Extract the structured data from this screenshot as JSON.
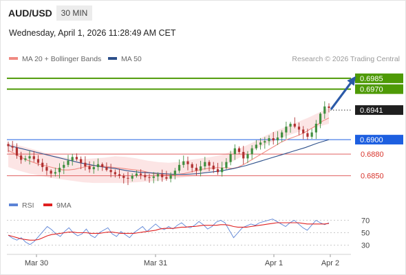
{
  "header": {
    "symbol": "AUD/USD",
    "timeframe": "30 MIN",
    "datetime": "Wednesday, April 1, 2026 11:28:49 AM CET"
  },
  "legend": {
    "items": [
      {
        "label": "MA 20 + Bollinger Bands",
        "color": "#f08a82"
      },
      {
        "label": "MA 50",
        "color": "#2c4f8a"
      }
    ],
    "credit": "Research © 2026 Trading Central"
  },
  "rsi_legend": {
    "items": [
      {
        "label": "RSI",
        "color": "#5b83d6"
      },
      {
        "label": "9MA",
        "color": "#e02020"
      }
    ]
  },
  "chart_data": [
    {
      "type": "candlestick",
      "title": "AUD/USD",
      "y_range": [
        0.6822,
        0.7003
      ],
      "x_ticks": [
        "Mar 30",
        "Mar 31",
        "Apr 1",
        "Apr 2"
      ],
      "current_price": {
        "label": "0.6941",
        "value": 0.6941
      },
      "levels": [
        {
          "label": "0.6985",
          "value": 0.6985,
          "kind": "target",
          "color": "#4e9a06"
        },
        {
          "label": "0.6970",
          "value": 0.697,
          "kind": "target",
          "color": "#4e9a06"
        },
        {
          "label": "0.6900",
          "value": 0.69,
          "kind": "pivot",
          "color": "#1d5fe0"
        },
        {
          "label": "0.6880",
          "value": 0.688,
          "kind": "support",
          "color": "#e06060"
        },
        {
          "label": "0.6850",
          "value": 0.685,
          "kind": "support",
          "color": "#e06060"
        }
      ],
      "close_path": [
        0.6891,
        0.6889,
        0.6878,
        0.6872,
        0.6874,
        0.6877,
        0.6873,
        0.6868,
        0.6862,
        0.6857,
        0.6853,
        0.6855,
        0.6861,
        0.6865,
        0.6871,
        0.6876,
        0.6873,
        0.6868,
        0.6863,
        0.6859,
        0.6862,
        0.6866,
        0.6862,
        0.6858,
        0.6855,
        0.6852,
        0.685,
        0.6847,
        0.6846,
        0.685,
        0.6853,
        0.6851,
        0.6848,
        0.6847,
        0.6849,
        0.6852,
        0.6848,
        0.6846,
        0.6851,
        0.6857,
        0.6865,
        0.687,
        0.6866,
        0.6861,
        0.6857,
        0.6863,
        0.6869,
        0.6864,
        0.6859,
        0.6855,
        0.6861,
        0.6869,
        0.688,
        0.6888,
        0.6883,
        0.6874,
        0.688,
        0.6888,
        0.6893,
        0.6896,
        0.6898,
        0.6902,
        0.6899,
        0.6903,
        0.691,
        0.6918,
        0.6922,
        0.6918,
        0.6914,
        0.6909,
        0.6904,
        0.691,
        0.6922,
        0.6936,
        0.6946,
        0.6944
      ],
      "ma20": [
        0.6885,
        0.6881,
        0.6876,
        0.6872,
        0.6869,
        0.6866,
        0.6864,
        0.6862,
        0.686,
        0.6858,
        0.6858,
        0.6859,
        0.6861,
        0.6863,
        0.6864,
        0.6864,
        0.6863,
        0.6862,
        0.6861,
        0.686,
        0.6859,
        0.6858,
        0.6857,
        0.6855,
        0.6853,
        0.6852,
        0.6851,
        0.6851,
        0.6852,
        0.6853,
        0.6855,
        0.6857,
        0.6859,
        0.686,
        0.6861,
        0.6861,
        0.6861,
        0.686,
        0.6862,
        0.6866,
        0.6871,
        0.6876,
        0.6881,
        0.6886,
        0.6891,
        0.6896,
        0.69,
        0.6903,
        0.6906,
        0.691,
        0.6915,
        0.692,
        0.6926,
        0.693
      ],
      "ma20_x0_index": 12,
      "ma50": [
        0.6892,
        0.6888,
        0.6884,
        0.688,
        0.6876,
        0.6872,
        0.6868,
        0.6865,
        0.6862,
        0.686,
        0.6857,
        0.6855,
        0.6854,
        0.6853,
        0.6852,
        0.6852,
        0.6853,
        0.6855,
        0.6857,
        0.686,
        0.6864,
        0.6869,
        0.6874,
        0.6879,
        0.6884,
        0.6889,
        0.6895,
        0.69
      ],
      "bollinger_upper": [
        0.6895,
        0.6892,
        0.6888,
        0.6884,
        0.6879,
        0.6876,
        0.6874,
        0.6873,
        0.6874,
        0.6875,
        0.6877,
        0.6876,
        0.6874,
        0.6871,
        0.6869,
        0.6868,
        0.6869,
        0.6872,
        0.6874,
        0.6876,
        0.6879,
        0.6884,
        0.689,
        0.6897,
        0.6905,
        0.6912,
        0.6918,
        0.6924,
        0.693,
        0.6937,
        0.6944
      ],
      "bollinger_lower": [
        0.6862,
        0.6857,
        0.6853,
        0.685,
        0.6847,
        0.6845,
        0.6843,
        0.6841,
        0.684,
        0.684,
        0.684,
        0.684,
        0.6841,
        0.6842,
        0.6843,
        0.6845,
        0.6847,
        0.6849,
        0.6852,
        0.6857,
        0.6863,
        0.687,
        0.6878,
        0.6886,
        0.6893,
        0.6899,
        0.6905,
        0.691,
        0.6914,
        0.6918,
        0.6922
      ]
    },
    {
      "type": "line",
      "title": "RSI",
      "y_range": [
        24,
        76
      ],
      "y_ticks": [
        30,
        50,
        70
      ],
      "series": [
        {
          "name": "RSI",
          "color": "#5b83d6",
          "values": [
            46,
            41,
            38,
            42,
            35,
            31,
            36,
            44,
            52,
            60,
            55,
            48,
            44,
            52,
            58,
            50,
            45,
            48,
            56,
            46,
            42,
            50,
            54,
            58,
            48,
            44,
            52,
            47,
            42,
            50,
            55,
            60,
            52,
            58,
            64,
            58,
            55,
            60,
            56,
            62,
            66,
            60,
            58,
            62,
            68,
            63,
            56,
            60,
            67,
            70,
            66,
            54,
            42,
            50,
            58,
            61,
            64,
            62,
            66,
            68,
            70,
            72,
            68,
            64,
            60,
            66,
            70,
            64,
            58,
            54,
            62,
            70,
            66,
            63,
            66
          ]
        },
        {
          "name": "9MA",
          "color": "#e02020",
          "values": [
            46,
            44,
            42,
            40,
            39,
            38,
            38,
            39,
            42,
            45,
            47,
            48,
            49,
            50,
            51,
            51,
            50,
            50,
            50,
            49,
            49,
            49,
            50,
            51,
            51,
            50,
            49,
            49,
            49,
            49,
            50,
            51,
            52,
            53,
            54,
            56,
            57,
            57,
            57,
            58,
            59,
            59,
            60,
            60,
            61,
            62,
            62,
            62,
            62,
            63,
            63,
            62,
            60,
            59,
            59,
            59,
            60,
            61,
            62,
            63,
            64,
            65,
            66,
            66,
            66,
            66,
            66,
            66,
            65,
            64,
            64,
            64,
            64,
            64,
            65
          ]
        }
      ]
    }
  ]
}
